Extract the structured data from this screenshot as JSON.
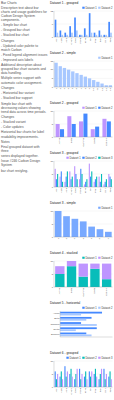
{
  "chart_data": [
    {
      "type": "bar",
      "title": "Dataset 1 - grouped",
      "categories": [
        "Agri",
        "Auto",
        "Avia",
        "Chem",
        "Elec",
        "Food",
        "Mine",
        "Oil",
        "Phar",
        "Rail",
        "Ship",
        "Tele"
      ],
      "series": [
        {
          "name": "Dataset 1",
          "color": "#4589ff",
          "values": [
            8,
            3,
            2,
            5,
            9,
            1,
            4,
            11,
            2,
            3,
            1,
            7
          ]
        },
        {
          "name": "Dataset 2",
          "color": "#a8c8ff",
          "values": [
            2,
            1,
            1,
            2,
            3,
            1,
            1,
            2,
            1,
            1,
            1,
            2
          ]
        }
      ],
      "ylim": [
        0,
        12
      ],
      "yticks": [
        0,
        6,
        12
      ],
      "grid": true,
      "legend": "upper right"
    },
    {
      "type": "bar",
      "title": "Dataset 2 - simple",
      "categories": [
        "1",
        "2",
        "3",
        "4",
        "5",
        "6",
        "7",
        "8",
        "9",
        "10",
        "11",
        "12",
        "13",
        "14"
      ],
      "series": [
        {
          "name": "Dataset 1",
          "color": "#a8c8ff",
          "values": [
            14,
            12,
            11,
            10,
            9,
            8,
            7,
            6,
            5,
            4,
            3,
            2,
            1,
            1
          ]
        }
      ],
      "ylim": [
        0,
        15
      ],
      "yticks": [
        0,
        5,
        10,
        15
      ],
      "grid": true,
      "legend": "upper right"
    },
    {
      "type": "bar",
      "title": "Dataset 2 - grouped",
      "categories": [
        "Alpha",
        "Beta",
        "Gamma",
        "Delta",
        "Epsilon"
      ],
      "series": [
        {
          "name": "Dataset 1",
          "color": "#be95ff",
          "values": [
            5,
            8,
            6,
            3,
            7
          ]
        },
        {
          "name": "Dataset 2",
          "color": "#4589ff",
          "values": [
            3,
            5,
            9,
            4,
            6
          ]
        }
      ],
      "ylim": [
        0,
        10
      ],
      "yticks": [
        0,
        5,
        10
      ],
      "grid": true,
      "legend": "upper right"
    },
    {
      "type": "bar",
      "title": "Dataset 3 - grouped",
      "categories": [
        "Agri",
        "Auto",
        "Avia",
        "Chem",
        "Elec",
        "Food",
        "Mine",
        "Oil",
        "Phar",
        "Rail",
        "Ship",
        "Tele"
      ],
      "series": [
        {
          "name": "Dataset 1",
          "color": "#be95ff",
          "values": [
            7,
            4,
            2,
            6,
            8,
            3,
            1,
            9,
            2,
            4,
            1,
            5
          ]
        },
        {
          "name": "Dataset 2",
          "color": "#4589ff",
          "values": [
            3,
            6,
            4,
            3,
            5,
            7,
            2,
            4,
            3,
            2,
            2,
            4
          ]
        },
        {
          "name": "Dataset 3",
          "color": "#08bdba",
          "values": [
            5,
            2,
            6,
            4,
            3,
            5,
            3,
            6,
            4,
            5,
            3,
            3
          ]
        }
      ],
      "ylim": [
        0,
        10
      ],
      "yticks": [
        0,
        5,
        10
      ],
      "grid": true,
      "legend": "upper right"
    },
    {
      "type": "bar",
      "title": "Dataset 3 - simple",
      "categories": [
        "1",
        "2",
        "3",
        "4",
        "5",
        "6",
        "7"
      ],
      "series": [
        {
          "name": "Dataset 1",
          "color": "#78a9ff",
          "values": [
            10,
            8,
            7,
            6,
            4,
            3,
            2
          ]
        }
      ],
      "ylim": [
        0,
        10
      ],
      "yticks": [
        0,
        5,
        10
      ],
      "grid": true,
      "legend": "upper right"
    },
    {
      "type": "bar",
      "title": "Dataset 4 - stacked",
      "categories": [
        "Alpha",
        "Beta",
        "Gamma",
        "Delta",
        "Epsilon"
      ],
      "series": [
        {
          "name": "Dataset 1",
          "color": "#08bdba",
          "values": [
            5,
            8,
            4,
            7,
            3
          ]
        },
        {
          "name": "Dataset 2",
          "color": "#be95ff",
          "values": [
            3,
            2,
            5,
            2,
            6
          ]
        }
      ],
      "stacked": true,
      "ylim": [
        0,
        10
      ],
      "yticks": [
        0,
        5,
        10
      ],
      "grid": true,
      "legend": "upper right"
    },
    {
      "type": "bar",
      "title": "Dataset 5 - horizontal",
      "orientation": "horizontal",
      "categories": [
        "Alpha",
        "Beta",
        "Gamma",
        "Delta",
        "Epsilon"
      ],
      "series": [
        {
          "name": "Dataset 1",
          "color": "#4589ff",
          "values": [
            8,
            6,
            4,
            7,
            5
          ]
        },
        {
          "name": "Dataset 2",
          "color": "#a8c8ff",
          "values": [
            4,
            5,
            7,
            3,
            6
          ]
        }
      ],
      "xlim": [
        0,
        10
      ],
      "tick_labels": "y",
      "grid": true,
      "legend": "upper right"
    },
    {
      "type": "bar",
      "title": "Dataset 6 - grouped",
      "categories": [
        "Agri",
        "Auto",
        "Avia",
        "Chem",
        "Elec",
        "Food",
        "Mine",
        "Oil",
        "Phar",
        "Rail",
        "Ship",
        "Tele"
      ],
      "series": [
        {
          "name": "Dataset 1",
          "color": "#4589ff",
          "values": [
            6,
            4,
            8,
            5,
            3,
            7,
            4,
            6,
            5,
            3,
            7,
            4
          ]
        },
        {
          "name": "Dataset 2",
          "color": "#08bdba",
          "values": [
            3,
            6,
            4,
            7,
            5,
            3,
            6,
            4,
            7,
            5,
            3,
            6
          ]
        },
        {
          "name": "Dataset 3",
          "color": "#be95ff",
          "values": [
            5,
            3,
            6,
            4,
            7,
            5,
            3,
            6,
            4,
            7,
            5,
            3
          ]
        }
      ],
      "ylim": [
        0,
        10
      ],
      "yticks": [
        0,
        5,
        10
      ],
      "grid": true,
      "legend": "upper right"
    }
  ],
  "annotations": [
    "Bar Charts",
    "Description text about bar charts and usage guidelines for Carbon Design System components.",
    "- Simple bar chart",
    "- Grouped bar chart",
    "- Stacked bar chart",
    "Changes",
    "- Updated color palette to match Carbon",
    "- Fixed legend alignment issues",
    "- Improved axis labels",
    "Additional description about grouped bar chart variants and data handling.",
    "Multiple series support with",
    "automatic color assignment.",
    "Changes",
    "- Horizontal bar variant",
    "- Stacked bar support",
    "Simple bar chart with decreasing values showing trend data across time periods.",
    "Changes",
    "- Stacked variant",
    "- Color updates",
    "Horizontal bar charts for label",
    "readability improvements.",
    "Notes",
    "Final grouped dataset with three",
    "series displayed together.",
    "Issue #246 Carbon Design System",
    "bar chart restyling."
  ]
}
